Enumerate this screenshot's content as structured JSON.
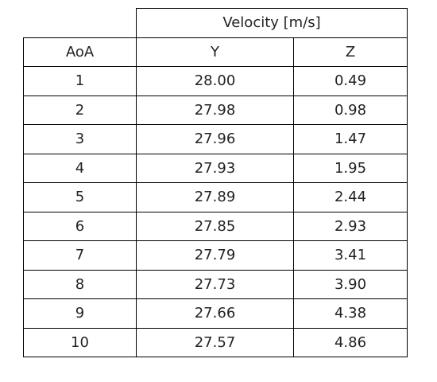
{
  "table": {
    "group_header": "Velocity [m/s]",
    "columns": [
      "AoA",
      "Y",
      "Z"
    ],
    "rows": [
      [
        "1",
        "28.00",
        "0.49"
      ],
      [
        "2",
        "27.98",
        "0.98"
      ],
      [
        "3",
        "27.96",
        "1.47"
      ],
      [
        "4",
        "27.93",
        "1.95"
      ],
      [
        "5",
        "27.89",
        "2.44"
      ],
      [
        "6",
        "27.85",
        "2.93"
      ],
      [
        "7",
        "27.79",
        "3.41"
      ],
      [
        "8",
        "27.73",
        "3.90"
      ],
      [
        "9",
        "27.66",
        "4.38"
      ],
      [
        "10",
        "27.57",
        "4.86"
      ]
    ]
  }
}
